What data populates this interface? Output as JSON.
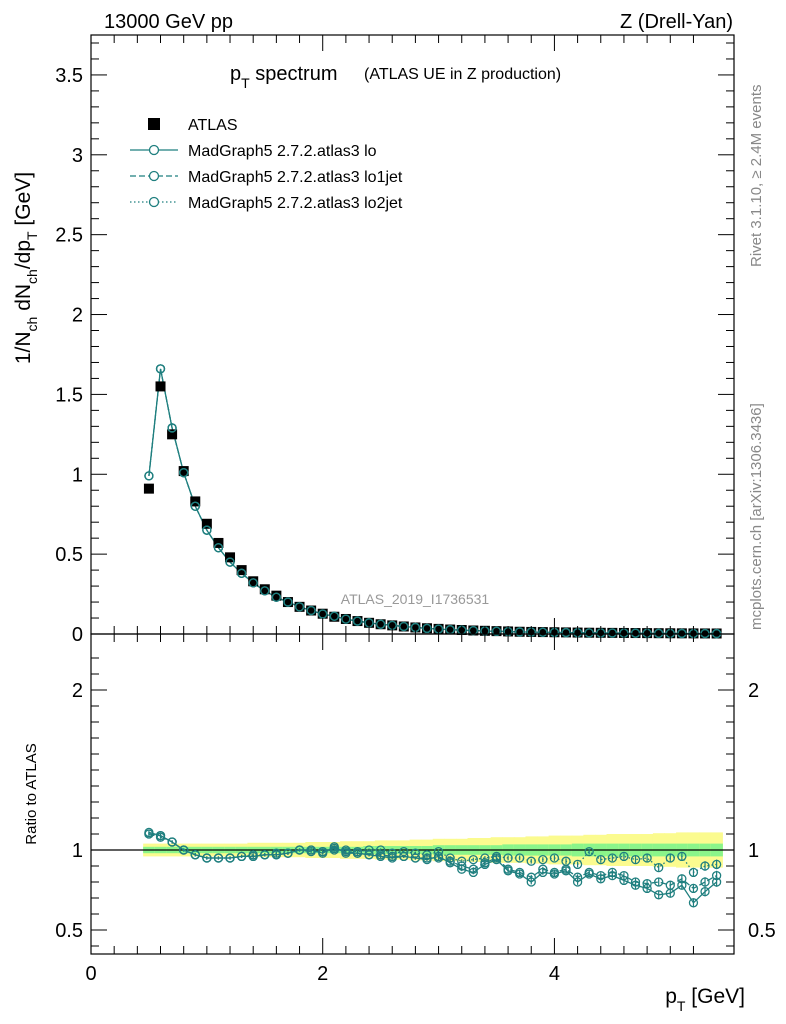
{
  "header": {
    "left": "13000 GeV pp",
    "right": "Z (Drell-Yan)"
  },
  "side_labels": {
    "rivet": "Rivet 3.1.10, ≥ 2.4M events",
    "mcplots": "mcplots.cern.ch [arXiv:1306.3436]"
  },
  "colors": {
    "data": "#000000",
    "mc": "#1f7f7f",
    "band_inner": "#8af58a",
    "band_outer": "#fbfb8f"
  },
  "chart_data": [
    {
      "type": "scatter",
      "panel": "main",
      "title": "p_T spectrum",
      "subtitle": "(ATLAS UE in Z production)",
      "title_parts": {
        "main": "p",
        "main_sub": "T",
        "rest": " spectrum"
      },
      "ylabel": "1/N_ch dN_ch/dp_T [GeV]",
      "watermark": "ATLAS_2019_I1736531",
      "xlim": [
        0,
        5.55
      ],
      "ylim": [
        0,
        3.75
      ],
      "yticks": [
        0,
        0.5,
        1,
        1.5,
        2,
        2.5,
        3,
        3.5
      ],
      "ytick_labels": [
        "0",
        "0.5",
        "1",
        "1.5",
        "2",
        "2.5",
        "3",
        "3.5"
      ],
      "legend_position": "top-left",
      "x": [
        0.5,
        0.6,
        0.7,
        0.8,
        0.9,
        1.0,
        1.1,
        1.2,
        1.3,
        1.4,
        1.5,
        1.6,
        1.7,
        1.8,
        1.9,
        2.0,
        2.1,
        2.2,
        2.3,
        2.4,
        2.5,
        2.6,
        2.7,
        2.8,
        2.9,
        3.0,
        3.1,
        3.2,
        3.3,
        3.4,
        3.5,
        3.6,
        3.7,
        3.8,
        3.9,
        4.0,
        4.1,
        4.2,
        4.3,
        4.4,
        4.5,
        4.6,
        4.7,
        4.8,
        4.9,
        5.0,
        5.1,
        5.2,
        5.3,
        5.4
      ],
      "series": [
        {
          "name": "ATLAS",
          "marker": "square",
          "line": "none",
          "values": [
            0.91,
            1.55,
            1.25,
            1.02,
            0.83,
            0.69,
            0.57,
            0.48,
            0.4,
            0.33,
            0.28,
            0.24,
            0.2,
            0.17,
            0.147,
            0.127,
            0.108,
            0.094,
            0.081,
            0.07,
            0.061,
            0.054,
            0.047,
            0.041,
            0.036,
            0.032,
            0.028,
            0.025,
            0.022,
            0.02,
            0.018,
            0.016,
            0.014,
            0.013,
            0.012,
            0.011,
            0.01,
            0.009,
            0.008,
            0.0075,
            0.007,
            0.0065,
            0.006,
            0.0055,
            0.005,
            0.0046,
            0.0042,
            0.0038,
            0.0035,
            0.0032
          ]
        },
        {
          "name": "MadGraph5 2.7.2.atlas3 lo",
          "marker": "open-circle",
          "line": "solid",
          "values": [
            0.99,
            1.66,
            1.29,
            1.01,
            0.8,
            0.65,
            0.54,
            0.45,
            0.38,
            0.32,
            0.27,
            0.23,
            0.2,
            0.17,
            0.147,
            0.125,
            0.111,
            0.093,
            0.081,
            0.07,
            0.061,
            0.054,
            0.047,
            0.041,
            0.035,
            0.031,
            0.027,
            0.024,
            0.021,
            0.019,
            0.017,
            0.015,
            0.013,
            0.012,
            0.011,
            0.01,
            0.009,
            0.008,
            0.007,
            0.0067,
            0.0062,
            0.0057,
            0.0052,
            0.0047,
            0.0043,
            0.0039,
            0.0035,
            0.0032,
            0.003,
            0.0027
          ]
        },
        {
          "name": "MadGraph5 2.7.2.atlas3 lo1jet",
          "marker": "open-circle",
          "line": "dashed",
          "values": [
            0.99,
            1.66,
            1.29,
            1.01,
            0.8,
            0.65,
            0.54,
            0.45,
            0.38,
            0.32,
            0.27,
            0.23,
            0.2,
            0.17,
            0.147,
            0.125,
            0.111,
            0.093,
            0.081,
            0.07,
            0.061,
            0.054,
            0.047,
            0.041,
            0.035,
            0.031,
            0.027,
            0.024,
            0.021,
            0.019,
            0.017,
            0.015,
            0.013,
            0.012,
            0.011,
            0.01,
            0.009,
            0.008,
            0.007,
            0.0067,
            0.0062,
            0.0057,
            0.0052,
            0.0047,
            0.0043,
            0.0039,
            0.0035,
            0.0032,
            0.003,
            0.0027
          ]
        },
        {
          "name": "MadGraph5 2.7.2.atlas3 lo2jet",
          "marker": "open-circle",
          "line": "dotted",
          "values": [
            0.99,
            1.66,
            1.29,
            1.01,
            0.8,
            0.65,
            0.54,
            0.45,
            0.38,
            0.32,
            0.27,
            0.23,
            0.2,
            0.17,
            0.147,
            0.125,
            0.111,
            0.093,
            0.081,
            0.07,
            0.061,
            0.054,
            0.047,
            0.041,
            0.035,
            0.031,
            0.027,
            0.024,
            0.021,
            0.019,
            0.017,
            0.015,
            0.013,
            0.012,
            0.011,
            0.01,
            0.009,
            0.008,
            0.007,
            0.0067,
            0.0062,
            0.0057,
            0.0052,
            0.0047,
            0.0043,
            0.0039,
            0.0035,
            0.0032,
            0.003,
            0.0027
          ]
        }
      ]
    },
    {
      "type": "scatter",
      "panel": "ratio",
      "ylabel": "Ratio to ATLAS",
      "xlabel": "p_T [GeV]",
      "xlabel_parts": {
        "main": "p",
        "sub": "T",
        "rest": " [GeV]"
      },
      "xlim": [
        0,
        5.55
      ],
      "ylim": [
        0.35,
        2.35
      ],
      "xticks": [
        0,
        2,
        4
      ],
      "xtick_labels": [
        "0",
        "2",
        "4"
      ],
      "yticks": [
        0.5,
        1,
        2
      ],
      "ytick_labels": [
        "0.5",
        "1",
        "2"
      ],
      "reference_line": 1,
      "x": [
        0.5,
        0.6,
        0.7,
        0.8,
        0.9,
        1.0,
        1.1,
        1.2,
        1.3,
        1.4,
        1.5,
        1.6,
        1.7,
        1.8,
        1.9,
        2.0,
        2.1,
        2.2,
        2.3,
        2.4,
        2.5,
        2.6,
        2.7,
        2.8,
        2.9,
        3.0,
        3.1,
        3.2,
        3.3,
        3.4,
        3.5,
        3.6,
        3.7,
        3.8,
        3.9,
        4.0,
        4.1,
        4.2,
        4.3,
        4.4,
        4.5,
        4.6,
        4.7,
        4.8,
        4.9,
        5.0,
        5.1,
        5.2,
        5.3,
        5.4
      ],
      "band_inner_halfwidth": [
        0.02,
        0.02,
        0.02,
        0.02,
        0.02,
        0.02,
        0.02,
        0.02,
        0.02,
        0.02,
        0.02,
        0.02,
        0.02,
        0.02,
        0.02,
        0.02,
        0.02,
        0.02,
        0.02,
        0.025,
        0.025,
        0.025,
        0.025,
        0.025,
        0.025,
        0.03,
        0.03,
        0.03,
        0.03,
        0.03,
        0.03,
        0.035,
        0.035,
        0.035,
        0.035,
        0.035,
        0.035,
        0.04,
        0.04,
        0.04,
        0.04,
        0.04,
        0.04,
        0.04,
        0.04,
        0.04,
        0.04,
        0.04,
        0.04,
        0.04
      ],
      "band_outer_halfwidth": [
        0.04,
        0.04,
        0.04,
        0.04,
        0.04,
        0.04,
        0.04,
        0.04,
        0.04,
        0.045,
        0.045,
        0.045,
        0.045,
        0.045,
        0.05,
        0.05,
        0.05,
        0.055,
        0.055,
        0.055,
        0.06,
        0.06,
        0.06,
        0.065,
        0.065,
        0.07,
        0.07,
        0.07,
        0.075,
        0.075,
        0.08,
        0.08,
        0.08,
        0.085,
        0.085,
        0.09,
        0.09,
        0.09,
        0.095,
        0.095,
        0.1,
        0.1,
        0.1,
        0.1,
        0.105,
        0.105,
        0.11,
        0.11,
        0.11,
        0.11
      ],
      "series": [
        {
          "name": "MadGraph5 2.7.2.atlas3 lo",
          "marker": "open-circle",
          "line": "solid",
          "values": [
            1.11,
            1.09,
            1.05,
            1.0,
            0.97,
            0.95,
            0.95,
            0.95,
            0.96,
            0.96,
            0.97,
            0.97,
            0.98,
            1.0,
            1.0,
            0.98,
            1.02,
            0.98,
            0.98,
            0.97,
            0.96,
            0.95,
            0.96,
            0.95,
            0.94,
            0.96,
            0.92,
            0.88,
            0.86,
            0.91,
            0.94,
            0.87,
            0.85,
            0.8,
            0.86,
            0.85,
            0.87,
            0.8,
            0.85,
            0.82,
            0.84,
            0.81,
            0.78,
            0.76,
            0.72,
            0.73,
            0.78,
            0.67,
            0.74,
            0.8
          ],
          "errors": [
            0.01,
            0.01,
            0.01,
            0.01,
            0.01,
            0.01,
            0.01,
            0.01,
            0.01,
            0.01,
            0.01,
            0.01,
            0.01,
            0.01,
            0.01,
            0.01,
            0.01,
            0.01,
            0.01,
            0.01,
            0.01,
            0.01,
            0.01,
            0.01,
            0.01,
            0.012,
            0.012,
            0.012,
            0.012,
            0.012,
            0.015,
            0.015,
            0.015,
            0.015,
            0.015,
            0.018,
            0.018,
            0.018,
            0.018,
            0.02,
            0.02,
            0.02,
            0.022,
            0.022,
            0.024,
            0.025,
            0.025,
            0.028,
            0.03,
            0.03
          ]
        },
        {
          "name": "MadGraph5 2.7.2.atlas3 lo1jet",
          "marker": "open-circle",
          "line": "dashed",
          "values": [
            1.1,
            1.09,
            1.05,
            1.0,
            0.97,
            0.95,
            0.95,
            0.95,
            0.96,
            0.96,
            0.97,
            0.97,
            0.98,
            1.0,
            0.99,
            0.99,
            1.01,
            0.99,
            0.98,
            0.97,
            0.97,
            0.96,
            0.96,
            0.95,
            0.95,
            0.95,
            0.93,
            0.9,
            0.88,
            0.92,
            0.95,
            0.88,
            0.86,
            0.83,
            0.88,
            0.86,
            0.88,
            0.83,
            0.86,
            0.84,
            0.86,
            0.84,
            0.8,
            0.79,
            0.8,
            0.78,
            0.82,
            0.76,
            0.8,
            0.84
          ],
          "errors": [
            0.01,
            0.01,
            0.01,
            0.01,
            0.01,
            0.01,
            0.01,
            0.01,
            0.01,
            0.01,
            0.01,
            0.01,
            0.01,
            0.01,
            0.01,
            0.01,
            0.01,
            0.01,
            0.01,
            0.01,
            0.01,
            0.01,
            0.01,
            0.01,
            0.01,
            0.012,
            0.012,
            0.012,
            0.012,
            0.012,
            0.015,
            0.015,
            0.015,
            0.015,
            0.015,
            0.018,
            0.018,
            0.018,
            0.018,
            0.02,
            0.02,
            0.02,
            0.022,
            0.022,
            0.024,
            0.025,
            0.025,
            0.028,
            0.03,
            0.03
          ]
        },
        {
          "name": "MadGraph5 2.7.2.atlas3 lo2jet",
          "marker": "open-circle",
          "line": "dotted",
          "values": [
            1.1,
            1.08,
            1.05,
            1.0,
            0.97,
            0.95,
            0.95,
            0.95,
            0.96,
            0.97,
            0.97,
            0.98,
            0.98,
            1.0,
            1.0,
            0.99,
            1.0,
            1.0,
            0.99,
            1.0,
            1.0,
            0.98,
            0.99,
            0.98,
            0.97,
            0.99,
            0.95,
            0.93,
            0.94,
            0.95,
            0.96,
            0.95,
            0.95,
            0.93,
            0.94,
            0.95,
            0.93,
            0.91,
            0.99,
            0.94,
            0.95,
            0.96,
            0.94,
            0.95,
            0.89,
            0.95,
            0.96,
            0.86,
            0.9,
            0.91
          ],
          "errors": [
            0.01,
            0.01,
            0.01,
            0.01,
            0.01,
            0.01,
            0.01,
            0.01,
            0.01,
            0.01,
            0.01,
            0.01,
            0.01,
            0.01,
            0.01,
            0.01,
            0.01,
            0.01,
            0.01,
            0.01,
            0.01,
            0.01,
            0.01,
            0.01,
            0.01,
            0.012,
            0.012,
            0.012,
            0.012,
            0.012,
            0.015,
            0.015,
            0.015,
            0.015,
            0.015,
            0.018,
            0.018,
            0.018,
            0.018,
            0.02,
            0.02,
            0.02,
            0.022,
            0.022,
            0.024,
            0.025,
            0.025,
            0.028,
            0.03,
            0.03
          ]
        }
      ]
    }
  ]
}
